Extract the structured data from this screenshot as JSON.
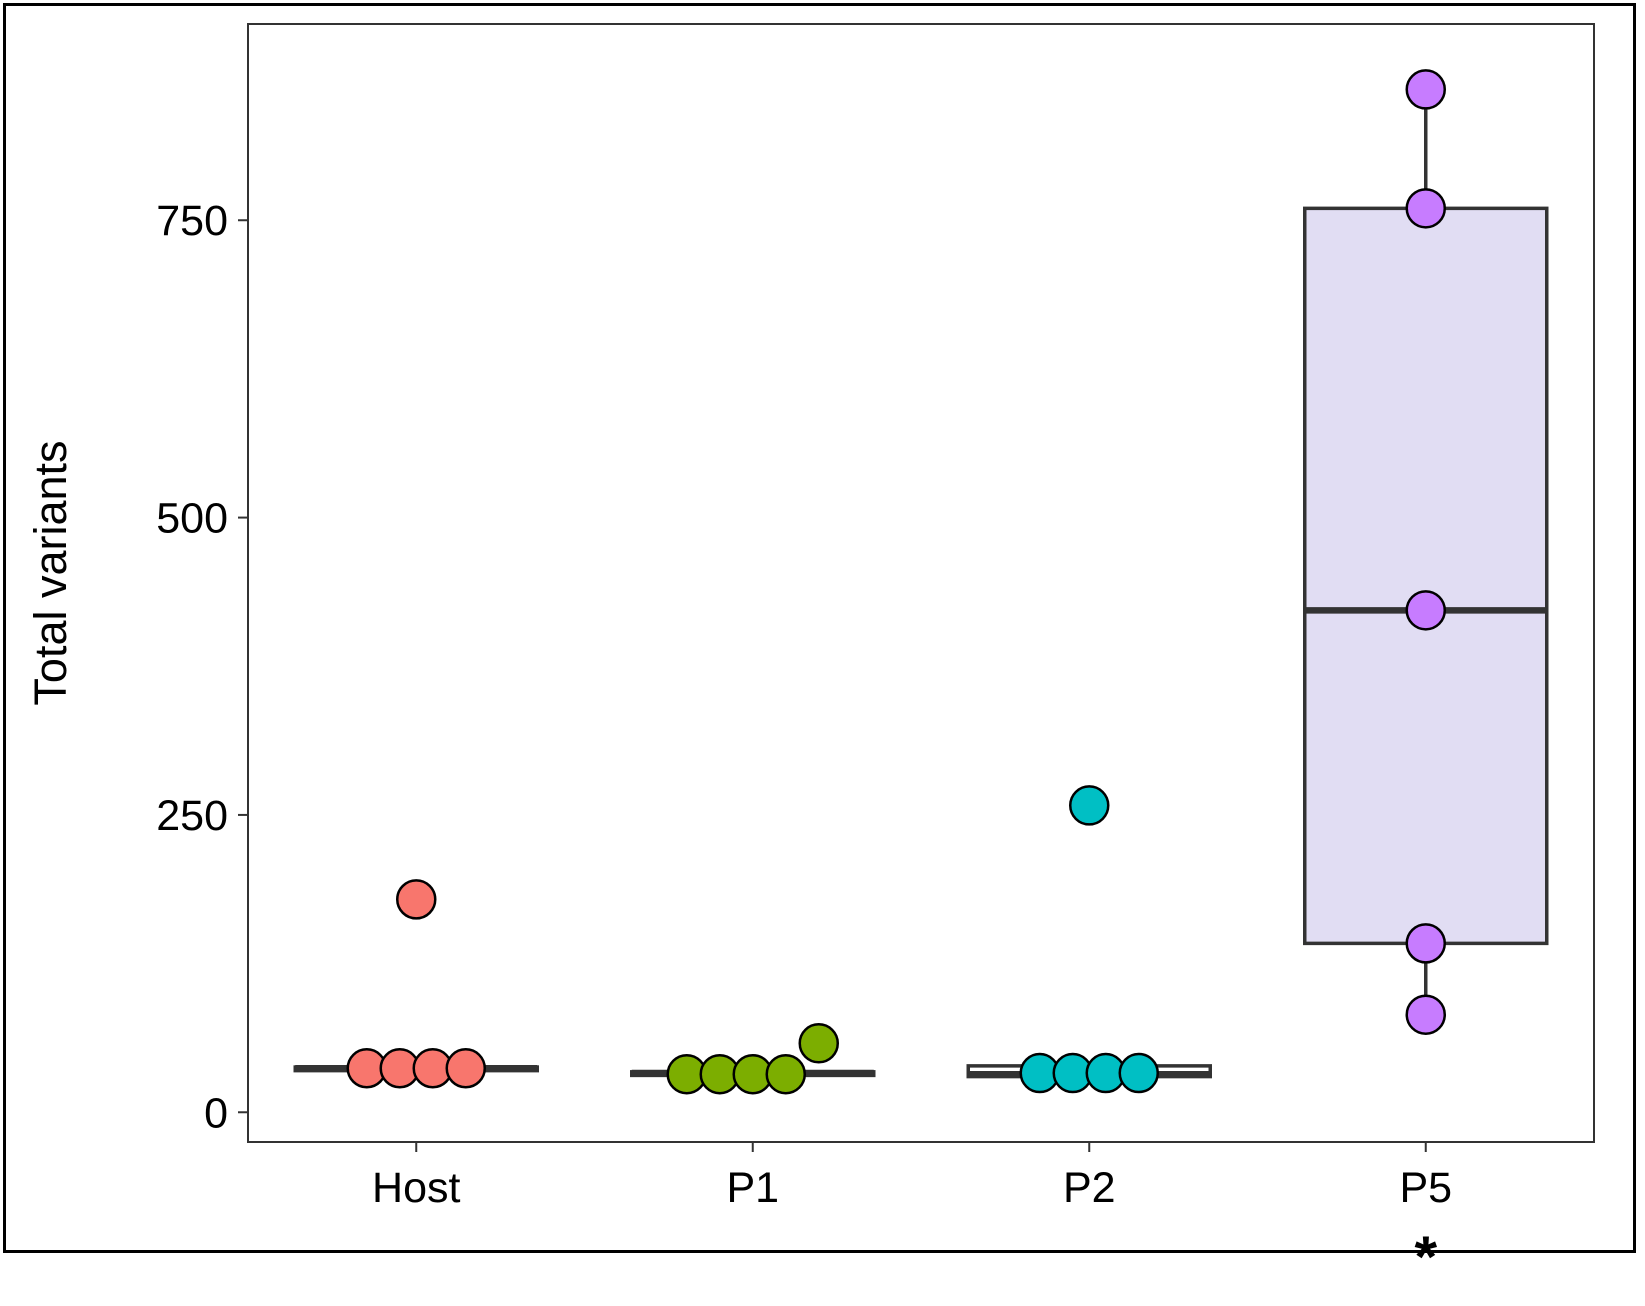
{
  "chart_data": {
    "type": "box",
    "ylabel": "Total variants",
    "xlabel": "",
    "ylim": [
      -25,
      915
    ],
    "yticks": [
      0,
      250,
      500,
      750
    ],
    "grid": false,
    "legend": "none",
    "categories": [
      "Host",
      "P1",
      "P2",
      "P5"
    ],
    "annotations": [
      {
        "category": "P5",
        "text": "*"
      }
    ],
    "groups": [
      {
        "name": "Host",
        "color": "#f8766d",
        "box_fill": "#ffffff",
        "box": {
          "min": 35,
          "q1": 35,
          "median": 37,
          "q3": 38,
          "max": 38
        },
        "points": [
          37,
          37,
          37,
          37,
          179
        ]
      },
      {
        "name": "P1",
        "color": "#7cae00",
        "box_fill": "#ffffff",
        "box": {
          "min": 31,
          "q1": 31,
          "median": 33,
          "q3": 34,
          "max": 34
        },
        "points": [
          32,
          32,
          32,
          32,
          58
        ]
      },
      {
        "name": "P2",
        "color": "#00bfc4",
        "box_fill": "#ffffff",
        "box": {
          "min": 28,
          "q1": 30,
          "median": 32,
          "q3": 39,
          "max": 39
        },
        "points": [
          33,
          33,
          33,
          33,
          258
        ]
      },
      {
        "name": "P5",
        "color": "#c77cff",
        "box_fill": "#e1ddf3",
        "box": {
          "min": 82,
          "q1": 142,
          "median": 422,
          "q3": 760,
          "max": 860
        },
        "points": [
          82,
          142,
          422,
          760,
          860
        ]
      }
    ]
  }
}
